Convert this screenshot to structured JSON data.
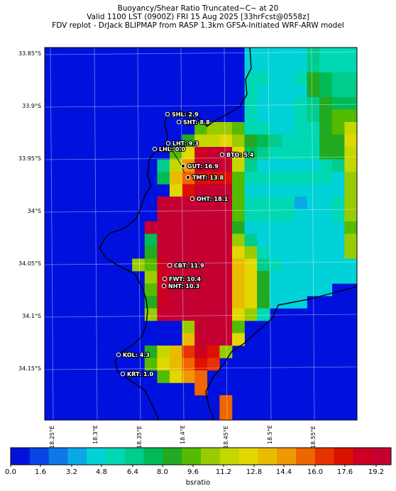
{
  "header": {
    "line1": "Buoyancy/Shear Ratio Truncated~C~    at 20",
    "line2": "Valid 1100 LST (0900Z) FRI 15 Aug 2025 [33hrFcst@0558z]",
    "line3": "FDV replot - DrJack BLIPMAP from RASP 1.3km GFSA-Initiated WRF-ARW model"
  },
  "lat_labels": [
    "33.85°S",
    "33.9°S",
    "33.95°S",
    "34°S",
    "34.05°S",
    "34.1°S",
    "34.15°S"
  ],
  "lon_labels": [
    "18.25°E",
    "18.3°E",
    "18.35°E",
    "18.4°E",
    "18.45°E",
    "18.5°E",
    "18.55°E"
  ],
  "stations": [
    {
      "label": "SHL: 2.9"
    },
    {
      "label": "SHT: 8.8"
    },
    {
      "label": "LHT: 9.3"
    },
    {
      "label": "LHL: 0.0"
    },
    {
      "label": "BTO: 5.4"
    },
    {
      "label": "GUT: 16.9"
    },
    {
      "label": "TMT: 13.8"
    },
    {
      "label": "OHT: 18.1"
    },
    {
      "label": "CBT: 11.9"
    },
    {
      "label": "FWT: 10.4"
    },
    {
      "label": "NHT: 10.3"
    },
    {
      "label": "KOL: 4.3"
    },
    {
      "label": "KRT: 1.0"
    }
  ],
  "colorbar": {
    "label": "bsratio",
    "ticks": [
      "0.0",
      "1.6",
      "3.2",
      "4.8",
      "6.4",
      "8.0",
      "9.6",
      "11.2",
      "12.8",
      "14.4",
      "16.0",
      "17.6",
      "19.2"
    ],
    "colors": [
      "#0011dd",
      "#0844e6",
      "#1077e8",
      "#0aa8e6",
      "#00d2d8",
      "#00d8b4",
      "#00cc8c",
      "#00bb55",
      "#22aa22",
      "#55bb00",
      "#99cc00",
      "#c4d800",
      "#e0d800",
      "#e8bb00",
      "#ee9900",
      "#ee6600",
      "#e63300",
      "#dd1100",
      "#cc0022",
      "#c40033"
    ]
  }
}
